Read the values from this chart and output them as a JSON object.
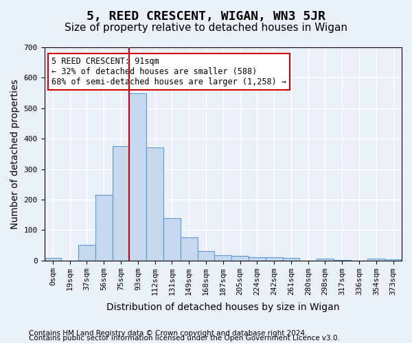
{
  "title": "5, REED CRESCENT, WIGAN, WN3 5JR",
  "subtitle": "Size of property relative to detached houses in Wigan",
  "xlabel": "Distribution of detached houses by size in Wigan",
  "ylabel": "Number of detached properties",
  "bar_labels": [
    "0sqm",
    "19sqm",
    "37sqm",
    "56sqm",
    "75sqm",
    "93sqm",
    "112sqm",
    "131sqm",
    "149sqm",
    "168sqm",
    "187sqm",
    "205sqm",
    "224sqm",
    "242sqm",
    "261sqm",
    "280sqm",
    "298sqm",
    "317sqm",
    "336sqm",
    "354sqm",
    "373sqm"
  ],
  "bar_values": [
    8,
    0,
    52,
    215,
    375,
    548,
    370,
    140,
    75,
    30,
    18,
    14,
    10,
    10,
    8,
    0,
    7,
    2,
    0,
    5,
    3
  ],
  "bar_color": "#c5d8ed",
  "bar_edge_color": "#5b9bd5",
  "vline_pos": 4.5,
  "annotation_text": "5 REED CRESCENT: 91sqm\n← 32% of detached houses are smaller (588)\n68% of semi-detached houses are larger (1,258) →",
  "annotation_box_color": "#ffffff",
  "annotation_box_edge": "#cc0000",
  "vline_color": "#cc0000",
  "ylim": [
    0,
    700
  ],
  "yticks": [
    0,
    100,
    200,
    300,
    400,
    500,
    600,
    700
  ],
  "footer_line1": "Contains HM Land Registry data © Crown copyright and database right 2024.",
  "footer_line2": "Contains public sector information licensed under the Open Government Licence v3.0.",
  "background_color": "#eaf0f8",
  "plot_background": "#eaf0f8",
  "grid_color": "#ffffff",
  "title_fontsize": 13,
  "subtitle_fontsize": 11,
  "axis_label_fontsize": 10,
  "tick_fontsize": 8,
  "footer_fontsize": 7.5
}
